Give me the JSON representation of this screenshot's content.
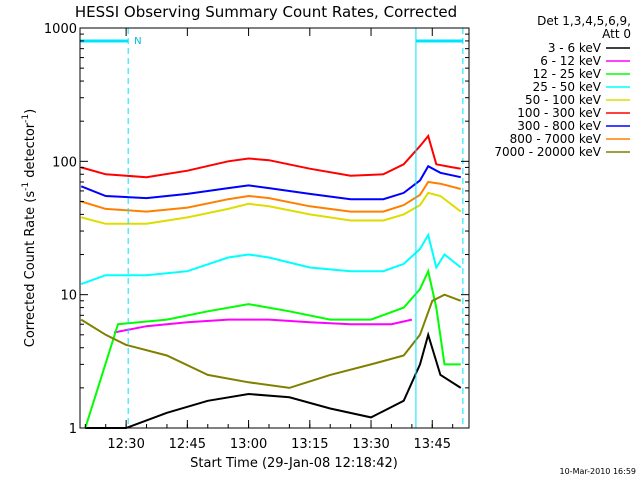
{
  "chart_data": {
    "type": "line",
    "title": "HESSI Observing Summary Count Rates, Corrected",
    "xlabel": "Start Time (29-Jan-08 12:18:42)",
    "ylabel": "Corrected Count Rate (s",
    "ylabel_sup1": "-1",
    "ylabel_mid": " detector",
    "ylabel_sup2": "-1",
    "ylabel_end": ")",
    "y_scale": "log",
    "ylim": [
      1,
      1000
    ],
    "x_range_minutes": [
      "12:18:42",
      "13:54:00"
    ],
    "x_ticks": [
      "12:30",
      "12:45",
      "13:00",
      "13:15",
      "13:30",
      "13:45"
    ],
    "y_ticks": [
      "1",
      "10",
      "100",
      "1000"
    ],
    "legend_header": [
      "Det 1,3,4,5,6,9,",
      "Att 0"
    ],
    "legend_placement": "right",
    "timestamp": "10-Mar-2010 16:59",
    "flag_markers": [
      {
        "label": "N",
        "start": "12:18:42",
        "end": "12:30:30"
      },
      {
        "label": "",
        "start": "13:41:00",
        "end": "13:52:30"
      }
    ],
    "series": [
      {
        "name": "3 - 6 keV",
        "color": "#000000",
        "values": [
          [
            "12:20",
            1.0
          ],
          [
            "12:30",
            1.0
          ],
          [
            "12:40",
            1.3
          ],
          [
            "12:50",
            1.6
          ],
          [
            "13:00",
            1.8
          ],
          [
            "13:10",
            1.7
          ],
          [
            "13:20",
            1.4
          ],
          [
            "13:30",
            1.2
          ],
          [
            "13:38",
            1.6
          ],
          [
            "13:42",
            3.0
          ],
          [
            "13:44",
            5.0
          ],
          [
            "13:47",
            2.5
          ],
          [
            "13:52",
            2.0
          ]
        ]
      },
      {
        "name": "6 - 12 keV",
        "color": "#ff00ff",
        "values": [
          [
            "12:27",
            5.2
          ],
          [
            "12:35",
            5.8
          ],
          [
            "12:45",
            6.2
          ],
          [
            "12:55",
            6.5
          ],
          [
            "13:05",
            6.5
          ],
          [
            "13:15",
            6.2
          ],
          [
            "13:25",
            6.0
          ],
          [
            "13:35",
            6.0
          ],
          [
            "13:40",
            6.5
          ]
        ]
      },
      {
        "name": "12 - 25 keV",
        "color": "#00ff00",
        "values": [
          [
            "12:20",
            1.0
          ],
          [
            "12:28",
            6.0
          ],
          [
            "12:40",
            6.5
          ],
          [
            "12:50",
            7.5
          ],
          [
            "13:00",
            8.5
          ],
          [
            "13:10",
            7.5
          ],
          [
            "13:20",
            6.5
          ],
          [
            "13:30",
            6.5
          ],
          [
            "13:38",
            8.0
          ],
          [
            "13:42",
            11
          ],
          [
            "13:44",
            15
          ],
          [
            "13:46",
            8
          ],
          [
            "13:48",
            3
          ],
          [
            "13:52",
            3
          ]
        ]
      },
      {
        "name": "25 - 50 keV",
        "color": "#00ffff",
        "values": [
          [
            "12:19",
            12
          ],
          [
            "12:25",
            14
          ],
          [
            "12:35",
            14
          ],
          [
            "12:45",
            15
          ],
          [
            "12:55",
            19
          ],
          [
            "13:00",
            20
          ],
          [
            "13:05",
            19
          ],
          [
            "13:15",
            16
          ],
          [
            "13:25",
            15
          ],
          [
            "13:33",
            15
          ],
          [
            "13:38",
            17
          ],
          [
            "13:42",
            22
          ],
          [
            "13:44",
            28
          ],
          [
            "13:46",
            16
          ],
          [
            "13:48",
            20
          ],
          [
            "13:52",
            16
          ]
        ]
      },
      {
        "name": "50 - 100 keV",
        "color": "#dddd00",
        "values": [
          [
            "12:19",
            38
          ],
          [
            "12:25",
            34
          ],
          [
            "12:35",
            34
          ],
          [
            "12:45",
            38
          ],
          [
            "12:55",
            44
          ],
          [
            "13:00",
            48
          ],
          [
            "13:05",
            46
          ],
          [
            "13:15",
            40
          ],
          [
            "13:25",
            36
          ],
          [
            "13:33",
            36
          ],
          [
            "13:38",
            40
          ],
          [
            "13:42",
            47
          ],
          [
            "13:44",
            58
          ],
          [
            "13:47",
            55
          ],
          [
            "13:52",
            42
          ]
        ]
      },
      {
        "name": "100 - 300 keV",
        "color": "#ff0000",
        "values": [
          [
            "12:19",
            90
          ],
          [
            "12:25",
            80
          ],
          [
            "12:35",
            76
          ],
          [
            "12:45",
            85
          ],
          [
            "12:55",
            100
          ],
          [
            "13:00",
            105
          ],
          [
            "13:05",
            102
          ],
          [
            "13:15",
            88
          ],
          [
            "13:25",
            78
          ],
          [
            "13:33",
            80
          ],
          [
            "13:38",
            95
          ],
          [
            "13:42",
            130
          ],
          [
            "13:44",
            155
          ],
          [
            "13:46",
            95
          ],
          [
            "13:50",
            90
          ],
          [
            "13:52",
            88
          ]
        ]
      },
      {
        "name": "300 - 800 keV",
        "color": "#0000ff",
        "values": [
          [
            "12:19",
            65
          ],
          [
            "12:25",
            55
          ],
          [
            "12:35",
            53
          ],
          [
            "12:45",
            57
          ],
          [
            "12:55",
            63
          ],
          [
            "13:00",
            66
          ],
          [
            "13:05",
            63
          ],
          [
            "13:15",
            57
          ],
          [
            "13:25",
            52
          ],
          [
            "13:33",
            52
          ],
          [
            "13:38",
            58
          ],
          [
            "13:42",
            72
          ],
          [
            "13:44",
            92
          ],
          [
            "13:47",
            82
          ],
          [
            "13:52",
            76
          ]
        ]
      },
      {
        "name": "800 - 7000 keV",
        "color": "#ff8000",
        "values": [
          [
            "12:19",
            50
          ],
          [
            "12:25",
            44
          ],
          [
            "12:35",
            42
          ],
          [
            "12:45",
            45
          ],
          [
            "12:55",
            52
          ],
          [
            "13:00",
            55
          ],
          [
            "13:05",
            53
          ],
          [
            "13:15",
            46
          ],
          [
            "13:25",
            42
          ],
          [
            "13:33",
            42
          ],
          [
            "13:38",
            47
          ],
          [
            "13:42",
            56
          ],
          [
            "13:44",
            70
          ],
          [
            "13:47",
            68
          ],
          [
            "13:52",
            62
          ]
        ]
      },
      {
        "name": "7000 - 20000 keV",
        "color": "#808000",
        "values": [
          [
            "12:19",
            6.5
          ],
          [
            "12:25",
            5.0
          ],
          [
            "12:30",
            4.2
          ],
          [
            "12:40",
            3.5
          ],
          [
            "12:50",
            2.5
          ],
          [
            "13:00",
            2.2
          ],
          [
            "13:10",
            2.0
          ],
          [
            "13:20",
            2.5
          ],
          [
            "13:30",
            3.0
          ],
          [
            "13:38",
            3.5
          ],
          [
            "13:42",
            5.0
          ],
          [
            "13:45",
            9.0
          ],
          [
            "13:48",
            10
          ],
          [
            "13:52",
            9
          ]
        ]
      }
    ]
  }
}
